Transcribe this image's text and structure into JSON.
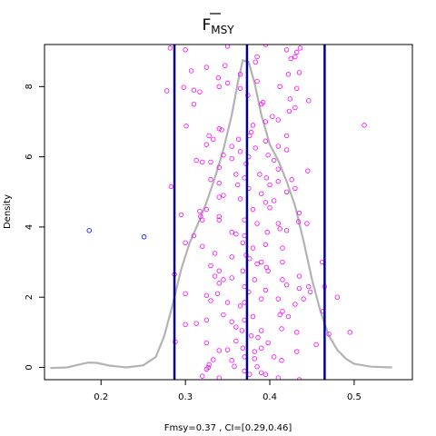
{
  "chart_data": {
    "type": "scatter",
    "title": "F",
    "title_subscript": "MSY",
    "title_overline": true,
    "xlabel": "Fmsy=0.37 , CI=[0.29,0.46]",
    "ylabel": "Density",
    "xlim": [
      0.133,
      0.569
    ],
    "ylim": [
      -0.35,
      9.2
    ],
    "x_ticks": [
      0.2,
      0.3,
      0.4,
      0.5
    ],
    "x_tick_labels": [
      "0.2",
      "0.3",
      "0.4",
      "0.5"
    ],
    "y_ticks": [
      0,
      2,
      4,
      6,
      8
    ],
    "y_tick_labels": [
      "0",
      "2",
      "4",
      "6",
      "8"
    ],
    "grid": false,
    "vlines": [
      0.287,
      0.373,
      0.465
    ],
    "vline_color": "#00008b",
    "density_color": "#b3b3b3",
    "density_curve": [
      [
        0.14,
        -0.02
      ],
      [
        0.16,
        0.0
      ],
      [
        0.17,
        0.06
      ],
      [
        0.185,
        0.14
      ],
      [
        0.195,
        0.13
      ],
      [
        0.21,
        0.05
      ],
      [
        0.23,
        0.0
      ],
      [
        0.25,
        0.06
      ],
      [
        0.265,
        0.3
      ],
      [
        0.275,
        0.9
      ],
      [
        0.285,
        1.8
      ],
      [
        0.295,
        2.8
      ],
      [
        0.305,
        3.55
      ],
      [
        0.315,
        4.1
      ],
      [
        0.325,
        4.7
      ],
      [
        0.335,
        5.4
      ],
      [
        0.345,
        6.2
      ],
      [
        0.355,
        7.2
      ],
      [
        0.362,
        8.1
      ],
      [
        0.368,
        8.75
      ],
      [
        0.375,
        8.7
      ],
      [
        0.382,
        8.1
      ],
      [
        0.39,
        7.2
      ],
      [
        0.4,
        6.35
      ],
      [
        0.41,
        5.9
      ],
      [
        0.42,
        5.3
      ],
      [
        0.43,
        4.6
      ],
      [
        0.44,
        3.6
      ],
      [
        0.45,
        2.5
      ],
      [
        0.46,
        1.6
      ],
      [
        0.47,
        0.9
      ],
      [
        0.48,
        0.5
      ],
      [
        0.49,
        0.25
      ],
      [
        0.5,
        0.1
      ],
      [
        0.52,
        0.02
      ],
      [
        0.545,
        0.0
      ]
    ],
    "outlier_points": {
      "color": "#0000ff",
      "points": [
        [
          0.186,
          3.9
        ],
        [
          0.251,
          3.72
        ]
      ]
    },
    "points": {
      "color": "#ff00ff",
      "values": [
        [
          0.282,
          9.1
        ],
        [
          0.3,
          9.05
        ],
        [
          0.35,
          9.15
        ],
        [
          0.395,
          9.2
        ],
        [
          0.42,
          9.05
        ],
        [
          0.432,
          8.98
        ],
        [
          0.436,
          9.1
        ],
        [
          0.307,
          8.45
        ],
        [
          0.325,
          8.55
        ],
        [
          0.347,
          8.6
        ],
        [
          0.383,
          8.7
        ],
        [
          0.385,
          8.85
        ],
        [
          0.425,
          8.8
        ],
        [
          0.43,
          8.85
        ],
        [
          0.339,
          8.25
        ],
        [
          0.35,
          8.1
        ],
        [
          0.365,
          8.35
        ],
        [
          0.385,
          8.15
        ],
        [
          0.422,
          8.35
        ],
        [
          0.435,
          8.4
        ],
        [
          0.298,
          7.98
        ],
        [
          0.278,
          7.88
        ],
        [
          0.31,
          7.9
        ],
        [
          0.317,
          7.85
        ],
        [
          0.34,
          8.0
        ],
        [
          0.365,
          7.95
        ],
        [
          0.412,
          8.0
        ],
        [
          0.432,
          7.95
        ],
        [
          0.31,
          7.5
        ],
        [
          0.374,
          7.75
        ],
        [
          0.39,
          7.5
        ],
        [
          0.424,
          7.65
        ],
        [
          0.446,
          7.6
        ],
        [
          0.392,
          7.55
        ],
        [
          0.43,
          7.4
        ],
        [
          0.423,
          7.3
        ],
        [
          0.395,
          7.0
        ],
        [
          0.403,
          7.15
        ],
        [
          0.41,
          7.05
        ],
        [
          0.301,
          6.88
        ],
        [
          0.512,
          6.9
        ],
        [
          0.34,
          6.8
        ],
        [
          0.343,
          6.77
        ],
        [
          0.38,
          6.9
        ],
        [
          0.378,
          6.7
        ],
        [
          0.376,
          6.6
        ],
        [
          0.328,
          6.6
        ],
        [
          0.333,
          6.5
        ],
        [
          0.395,
          6.45
        ],
        [
          0.42,
          6.6
        ],
        [
          0.363,
          6.5
        ],
        [
          0.325,
          6.35
        ],
        [
          0.355,
          6.3
        ],
        [
          0.383,
          6.25
        ],
        [
          0.41,
          6.3
        ],
        [
          0.42,
          6.2
        ],
        [
          0.365,
          6.15
        ],
        [
          0.345,
          6.05
        ],
        [
          0.355,
          5.95
        ],
        [
          0.375,
          6.0
        ],
        [
          0.398,
          6.05
        ],
        [
          0.405,
          5.9
        ],
        [
          0.313,
          5.9
        ],
        [
          0.32,
          5.85
        ],
        [
          0.33,
          5.85
        ],
        [
          0.372,
          5.8
        ],
        [
          0.41,
          5.65
        ],
        [
          0.445,
          5.6
        ],
        [
          0.34,
          5.7
        ],
        [
          0.36,
          5.5
        ],
        [
          0.37,
          5.4
        ],
        [
          0.388,
          5.5
        ],
        [
          0.396,
          5.4
        ],
        [
          0.41,
          5.3
        ],
        [
          0.426,
          5.35
        ],
        [
          0.33,
          5.35
        ],
        [
          0.34,
          5.25
        ],
        [
          0.362,
          5.2
        ],
        [
          0.375,
          5.1
        ],
        [
          0.4,
          5.2
        ],
        [
          0.42,
          5.0
        ],
        [
          0.43,
          5.1
        ],
        [
          0.283,
          5.15
        ],
        [
          0.345,
          4.9
        ],
        [
          0.34,
          4.85
        ],
        [
          0.365,
          4.8
        ],
        [
          0.39,
          4.95
        ],
        [
          0.395,
          4.7
        ],
        [
          0.405,
          4.75
        ],
        [
          0.325,
          4.5
        ],
        [
          0.317,
          4.45
        ],
        [
          0.318,
          4.3
        ],
        [
          0.34,
          4.3
        ],
        [
          0.34,
          4.2
        ],
        [
          0.38,
          4.5
        ],
        [
          0.4,
          4.55
        ],
        [
          0.435,
          4.4
        ],
        [
          0.32,
          4.2
        ],
        [
          0.37,
          4.2
        ],
        [
          0.385,
          4.1
        ],
        [
          0.41,
          4.1
        ],
        [
          0.434,
          4.15
        ],
        [
          0.444,
          4.1
        ],
        [
          0.295,
          4.35
        ],
        [
          0.355,
          3.85
        ],
        [
          0.36,
          3.8
        ],
        [
          0.37,
          3.75
        ],
        [
          0.397,
          3.85
        ],
        [
          0.412,
          3.95
        ],
        [
          0.42,
          3.9
        ],
        [
          0.31,
          3.75
        ],
        [
          0.3,
          3.55
        ],
        [
          0.32,
          3.45
        ],
        [
          0.368,
          3.55
        ],
        [
          0.38,
          3.4
        ],
        [
          0.395,
          3.5
        ],
        [
          0.415,
          3.4
        ],
        [
          0.335,
          3.25
        ],
        [
          0.355,
          3.15
        ],
        [
          0.372,
          3.2
        ],
        [
          0.376,
          3.1
        ],
        [
          0.39,
          3.0
        ],
        [
          0.415,
          3.0
        ],
        [
          0.462,
          3.0
        ],
        [
          0.33,
          2.9
        ],
        [
          0.34,
          2.75
        ],
        [
          0.368,
          2.75
        ],
        [
          0.385,
          2.95
        ],
        [
          0.396,
          2.85
        ],
        [
          0.398,
          2.75
        ],
        [
          0.335,
          2.6
        ],
        [
          0.345,
          2.5
        ],
        [
          0.34,
          2.4
        ],
        [
          0.355,
          2.55
        ],
        [
          0.382,
          2.5
        ],
        [
          0.415,
          2.5
        ],
        [
          0.435,
          2.6
        ],
        [
          0.287,
          2.65
        ],
        [
          0.3,
          2.1
        ],
        [
          0.325,
          2.05
        ],
        [
          0.338,
          2.1
        ],
        [
          0.37,
          2.3
        ],
        [
          0.375,
          2.15
        ],
        [
          0.395,
          2.2
        ],
        [
          0.42,
          2.35
        ],
        [
          0.435,
          2.25
        ],
        [
          0.446,
          2.3
        ],
        [
          0.448,
          2.15
        ],
        [
          0.465,
          2.3
        ],
        [
          0.48,
          2.0
        ],
        [
          0.33,
          1.9
        ],
        [
          0.35,
          1.85
        ],
        [
          0.365,
          1.75
        ],
        [
          0.37,
          1.85
        ],
        [
          0.39,
          1.95
        ],
        [
          0.41,
          1.95
        ],
        [
          0.415,
          1.6
        ],
        [
          0.43,
          1.8
        ],
        [
          0.44,
          1.95
        ],
        [
          0.463,
          1.6
        ],
        [
          0.412,
          1.5
        ],
        [
          0.422,
          1.45
        ],
        [
          0.313,
          1.25
        ],
        [
          0.3,
          1.22
        ],
        [
          0.325,
          1.35
        ],
        [
          0.345,
          1.5
        ],
        [
          0.355,
          1.3
        ],
        [
          0.37,
          1.35
        ],
        [
          0.38,
          1.45
        ],
        [
          0.36,
          1.15
        ],
        [
          0.367,
          1.05
        ],
        [
          0.39,
          1.05
        ],
        [
          0.414,
          1.1
        ],
        [
          0.432,
          1.0
        ],
        [
          0.47,
          0.95
        ],
        [
          0.495,
          1.0
        ],
        [
          0.288,
          0.73
        ],
        [
          0.325,
          0.7
        ],
        [
          0.36,
          0.75
        ],
        [
          0.378,
          0.9
        ],
        [
          0.386,
          0.85
        ],
        [
          0.398,
          0.7
        ],
        [
          0.455,
          0.65
        ],
        [
          0.34,
          0.48
        ],
        [
          0.35,
          0.5
        ],
        [
          0.368,
          0.55
        ],
        [
          0.382,
          0.45
        ],
        [
          0.39,
          0.55
        ],
        [
          0.432,
          0.45
        ],
        [
          0.333,
          0.22
        ],
        [
          0.355,
          0.2
        ],
        [
          0.37,
          0.3
        ],
        [
          0.382,
          0.25
        ],
        [
          0.405,
          0.3
        ],
        [
          0.414,
          0.2
        ],
        [
          0.325,
          -0.05
        ],
        [
          0.328,
          0.08
        ],
        [
          0.327,
          0.0
        ],
        [
          0.358,
          0.03
        ],
        [
          0.37,
          -0.1
        ],
        [
          0.385,
          0.02
        ],
        [
          0.39,
          -0.15
        ],
        [
          0.32,
          -0.25
        ],
        [
          0.34,
          -0.3
        ],
        [
          0.376,
          -0.2
        ],
        [
          0.395,
          -0.2
        ],
        [
          0.41,
          -0.3
        ],
        [
          0.435,
          -0.35
        ]
      ]
    }
  }
}
